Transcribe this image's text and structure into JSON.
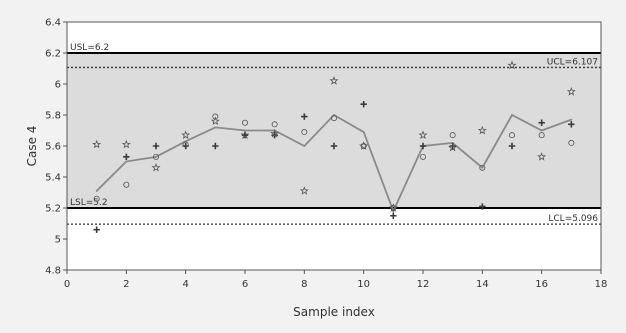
{
  "chart_data": {
    "type": "scatter",
    "title": "",
    "xlabel": "Sample index",
    "ylabel": "Case 4",
    "xlim": [
      0,
      18
    ],
    "ylim": [
      4.8,
      6.4
    ],
    "x_ticks": [
      0,
      2,
      4,
      6,
      8,
      10,
      12,
      14,
      16,
      18
    ],
    "y_ticks": [
      4.8,
      5,
      5.2,
      5.4,
      5.6,
      5.8,
      6,
      6.2,
      6.4
    ],
    "x_tick_labels": [
      "0",
      "2",
      "4",
      "6",
      "8",
      "10",
      "12",
      "14",
      "16",
      "18"
    ],
    "y_tick_labels": [
      "4.8",
      "5",
      "5.2",
      "5.4",
      "5.6",
      "5.8",
      "6",
      "6.2",
      "6.4"
    ],
    "grid": false,
    "legend": false,
    "spec_limits": [
      {
        "name": "USL",
        "label": "USL=6.2",
        "value": 6.2
      },
      {
        "name": "LSL",
        "label": "LSL=5.2",
        "value": 5.2
      }
    ],
    "control_limits": [
      {
        "name": "UCL",
        "label": "UCL=6.107",
        "value": 6.107
      },
      {
        "name": "LCL",
        "label": "LCL=5.096",
        "value": 5.096
      }
    ],
    "series": [
      {
        "marker": "cross",
        "x": [
          1,
          2,
          3,
          4,
          5,
          6,
          7,
          8,
          9,
          10,
          11,
          12,
          13,
          14,
          15,
          16,
          17
        ],
        "values": [
          5.06,
          5.53,
          5.6,
          5.6,
          5.6,
          5.67,
          5.67,
          5.79,
          5.6,
          5.87,
          5.15,
          5.6,
          5.6,
          5.21,
          5.6,
          5.75,
          5.74
        ]
      },
      {
        "marker": "star",
        "x": [
          1,
          2,
          3,
          4,
          5,
          6,
          7,
          8,
          9,
          10,
          11,
          12,
          13,
          14,
          15,
          16,
          17
        ],
        "values": [
          5.61,
          5.61,
          5.46,
          5.67,
          5.76,
          5.67,
          5.68,
          5.31,
          6.02,
          5.6,
          5.2,
          5.67,
          5.59,
          5.7,
          6.12,
          5.53,
          5.95
        ]
      },
      {
        "marker": "circle",
        "x": [
          1,
          2,
          3,
          4,
          5,
          6,
          7,
          8,
          9,
          10,
          11,
          12,
          13,
          14,
          15,
          16,
          17
        ],
        "values": [
          5.26,
          5.35,
          5.53,
          5.61,
          5.79,
          5.75,
          5.74,
          5.69,
          5.78,
          5.6,
          5.2,
          5.53,
          5.67,
          5.46,
          5.67,
          5.67,
          5.62
        ]
      },
      {
        "marker": "line",
        "x": [
          1,
          2,
          3,
          4,
          5,
          6,
          7,
          8,
          9,
          10,
          11,
          12,
          13,
          14,
          15,
          16,
          17
        ],
        "values": [
          5.31,
          5.5,
          5.53,
          5.63,
          5.72,
          5.7,
          5.7,
          5.6,
          5.8,
          5.69,
          5.18,
          5.6,
          5.62,
          5.46,
          5.8,
          5.7,
          5.77
        ]
      }
    ],
    "colors": {
      "background": "#f2f2f2",
      "plot_background": "#ffffff",
      "band_fill": "#dcdcdc",
      "line": "#8a8a8a",
      "marker": "#3a3a3a",
      "spec_line": "#000000",
      "control_line": "#333333",
      "axis": "#555555",
      "text": "#333333"
    }
  }
}
